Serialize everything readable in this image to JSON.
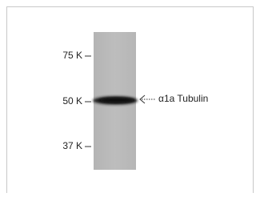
{
  "markers": [
    {
      "label": "75 K"
    },
    {
      "label": "50 K"
    },
    {
      "label": "37 K"
    }
  ],
  "band_label": "α1a Tubulin"
}
